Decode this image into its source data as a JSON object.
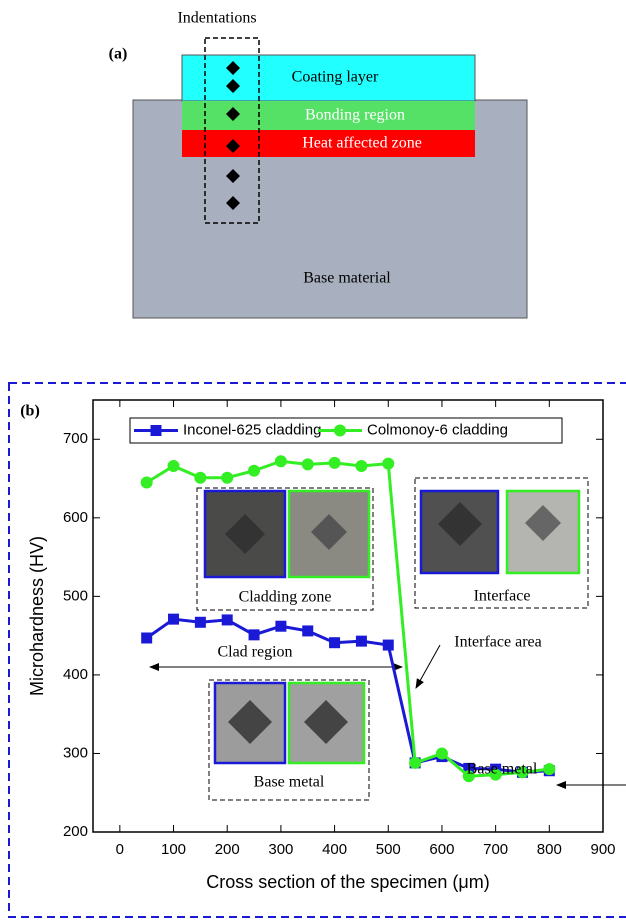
{
  "diagram": {
    "label": "(a)",
    "indentations_label": "Indentations",
    "layers": [
      "Coating layer",
      "Bonding region",
      "Heat affected zone",
      "Base material"
    ]
  },
  "chart_data": {
    "type": "line",
    "label": "(b)",
    "x_label": "Cross section of the specimen (μm)",
    "y_label": "Microhardness (HV)",
    "x": [
      50,
      100,
      150,
      200,
      250,
      300,
      350,
      400,
      450,
      500,
      550,
      600,
      650,
      700,
      750,
      800
    ],
    "series": [
      {
        "name": "Inconel-625 cladding",
        "color": "#1a1ad6",
        "marker": "square",
        "values": [
          447,
          471,
          467,
          470,
          451,
          462,
          456,
          441,
          443,
          438,
          288,
          296,
          281,
          280,
          276,
          278
        ]
      },
      {
        "name": "Colmonoy-6 cladding",
        "color": "#33ee22",
        "marker": "circle",
        "values": [
          645,
          666,
          651,
          651,
          660,
          672,
          668,
          670,
          666,
          669,
          288,
          300,
          271,
          273,
          276,
          280
        ]
      }
    ],
    "xlim": [
      -50,
      900
    ],
    "xticks": [
      0,
      100,
      200,
      300,
      400,
      500,
      600,
      700,
      800,
      900
    ],
    "ylim": [
      200,
      750
    ],
    "yticks": [
      200,
      300,
      400,
      500,
      600,
      700
    ],
    "annotations": [
      "Cladding zone",
      "Interface",
      "Clad region",
      "Interface area",
      "Base metal",
      "Base metal"
    ]
  }
}
